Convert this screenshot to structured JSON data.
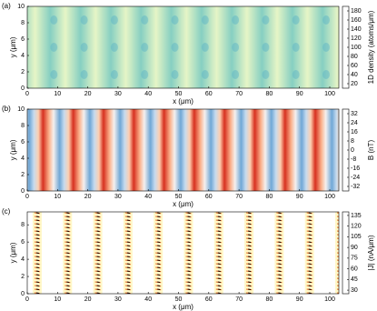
{
  "chart_data": [
    {
      "type": "heatmap",
      "panel_label": "(a)",
      "x_label": "x (μm)",
      "y_label": "y (μm)",
      "xlim": [
        0,
        103
      ],
      "xticks": [
        0,
        10,
        20,
        30,
        40,
        50,
        60,
        70,
        80,
        90,
        100
      ],
      "ylim": [
        0,
        10
      ],
      "yticks": [
        0,
        2,
        4,
        6,
        8,
        10
      ],
      "colorbar": {
        "label": "1D density (atoms/μm)",
        "clim": [
          10,
          190
        ],
        "ticks": [
          20,
          40,
          60,
          80,
          100,
          120,
          140,
          160,
          180
        ],
        "colormap": [
          "#2b3f9e",
          "#3a8fc0",
          "#7fcdbb",
          "#c7e9b4",
          "#ffffe0"
        ]
      }
    },
    {
      "type": "heatmap",
      "panel_label": "(b)",
      "x_label": "x (μm)",
      "y_label": "y (μm)",
      "xlim": [
        0,
        103
      ],
      "xticks": [
        0,
        10,
        20,
        30,
        40,
        50,
        60,
        70,
        80,
        90,
        100
      ],
      "ylim": [
        0,
        10
      ],
      "yticks": [
        0,
        2,
        4,
        6,
        8,
        10
      ],
      "colorbar": {
        "label": "B (nT)",
        "clim": [
          -36,
          36
        ],
        "ticks": [
          -32,
          -24,
          -16,
          -8,
          0,
          8,
          16,
          24,
          32
        ],
        "colormap": [
          "#8b0000",
          "#e34a33",
          "#fdd49e",
          "#f7f7f7",
          "#9ecae1",
          "#3182bd",
          "#08306b"
        ]
      }
    },
    {
      "type": "heatmap",
      "panel_label": "(c)",
      "x_label": "x (μm)",
      "y_label": "y (μm)",
      "xlim": [
        0,
        103
      ],
      "xticks": [
        0,
        10,
        20,
        30,
        40,
        50,
        60,
        70,
        80,
        90,
        100
      ],
      "ylim": [
        0,
        9.5
      ],
      "yticks": [
        0,
        2,
        4,
        6,
        8
      ],
      "colorbar": {
        "label": "|J| (nA/μm)",
        "clim": [
          25,
          140
        ],
        "ticks": [
          30,
          45,
          60,
          75,
          90,
          105,
          120,
          135
        ],
        "colormap": [
          "#ffffff",
          "#ffef8a",
          "#f5a623",
          "#d7301f",
          "#7f0000",
          "#000000"
        ]
      }
    }
  ]
}
